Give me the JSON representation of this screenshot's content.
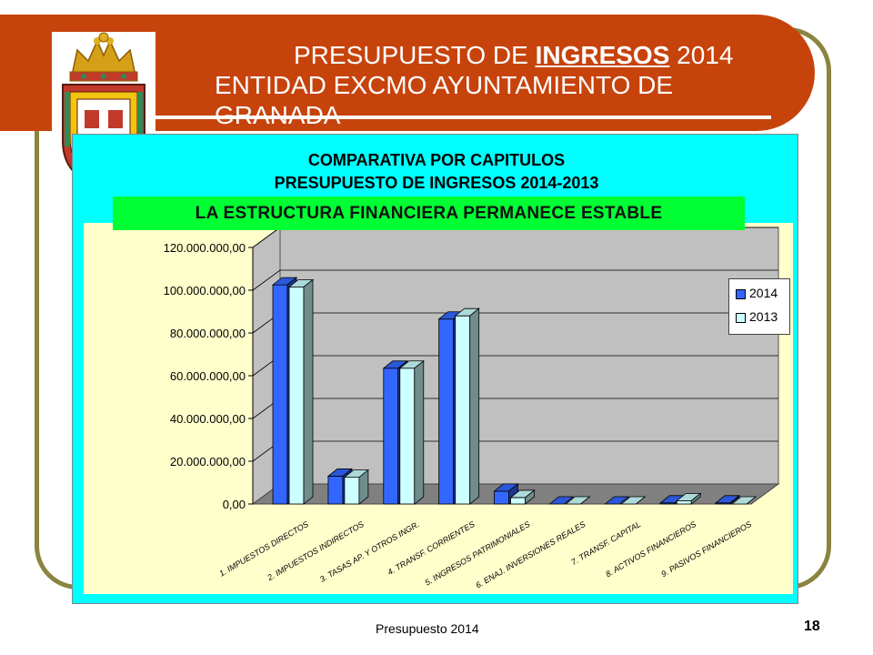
{
  "header": {
    "title_prefix": "PRESUPUESTO DE ",
    "title_highlight": "INGRESOS",
    "title_suffix": " 2014",
    "subtitle": "ENTIDAD EXCMO AYUNTAMIENTO DE GRANADA"
  },
  "chart_panel": {
    "title_line1": "COMPARATIVA POR CAPITULOS",
    "title_line2": "PRESUPUESTO DE INGRESOS 2014-2013",
    "banner": "LA ESTRUCTURA FINANCIERA PERMANECE ESTABLE"
  },
  "chart_data": {
    "type": "bar",
    "categories": [
      "1. IMPUESTOS DIRECTOS",
      "2. IMPUESTOS INDIRECTOS",
      "3. TASAS AP. Y OTROS INGR.",
      "4. TRANSF. CORRIENTES",
      "5. INGRESOS PATRIMONIALES",
      "6. ENAJ. INVERSIONES REALES",
      "7. TRANSF. CAPITAL",
      "8. ACTIVOS FINANCIEROS",
      "9. PASIVOS FINANCIEROS"
    ],
    "series": [
      {
        "name": "2014",
        "color": "#3366ff",
        "values": [
          102500000,
          13000000,
          63500000,
          86500000,
          6000000,
          0,
          0,
          500000,
          500000
        ]
      },
      {
        "name": "2013",
        "color": "#ccffff",
        "values": [
          101500000,
          12500000,
          63500000,
          88000000,
          3000000,
          0,
          0,
          1500000,
          0
        ]
      }
    ],
    "yticks": [
      "0,00",
      "20.000.000,00",
      "40.000.000,00",
      "60.000.000,00",
      "80.000.000,00",
      "100.000.000,00",
      "120.000.000,00"
    ],
    "ylim": [
      0,
      120000000
    ],
    "grid": true,
    "legend": "right",
    "colors": {
      "wall": "#c0c0c0",
      "floor": "#808080"
    }
  },
  "footer": {
    "text": "Presupuesto 2014",
    "page": "18"
  }
}
